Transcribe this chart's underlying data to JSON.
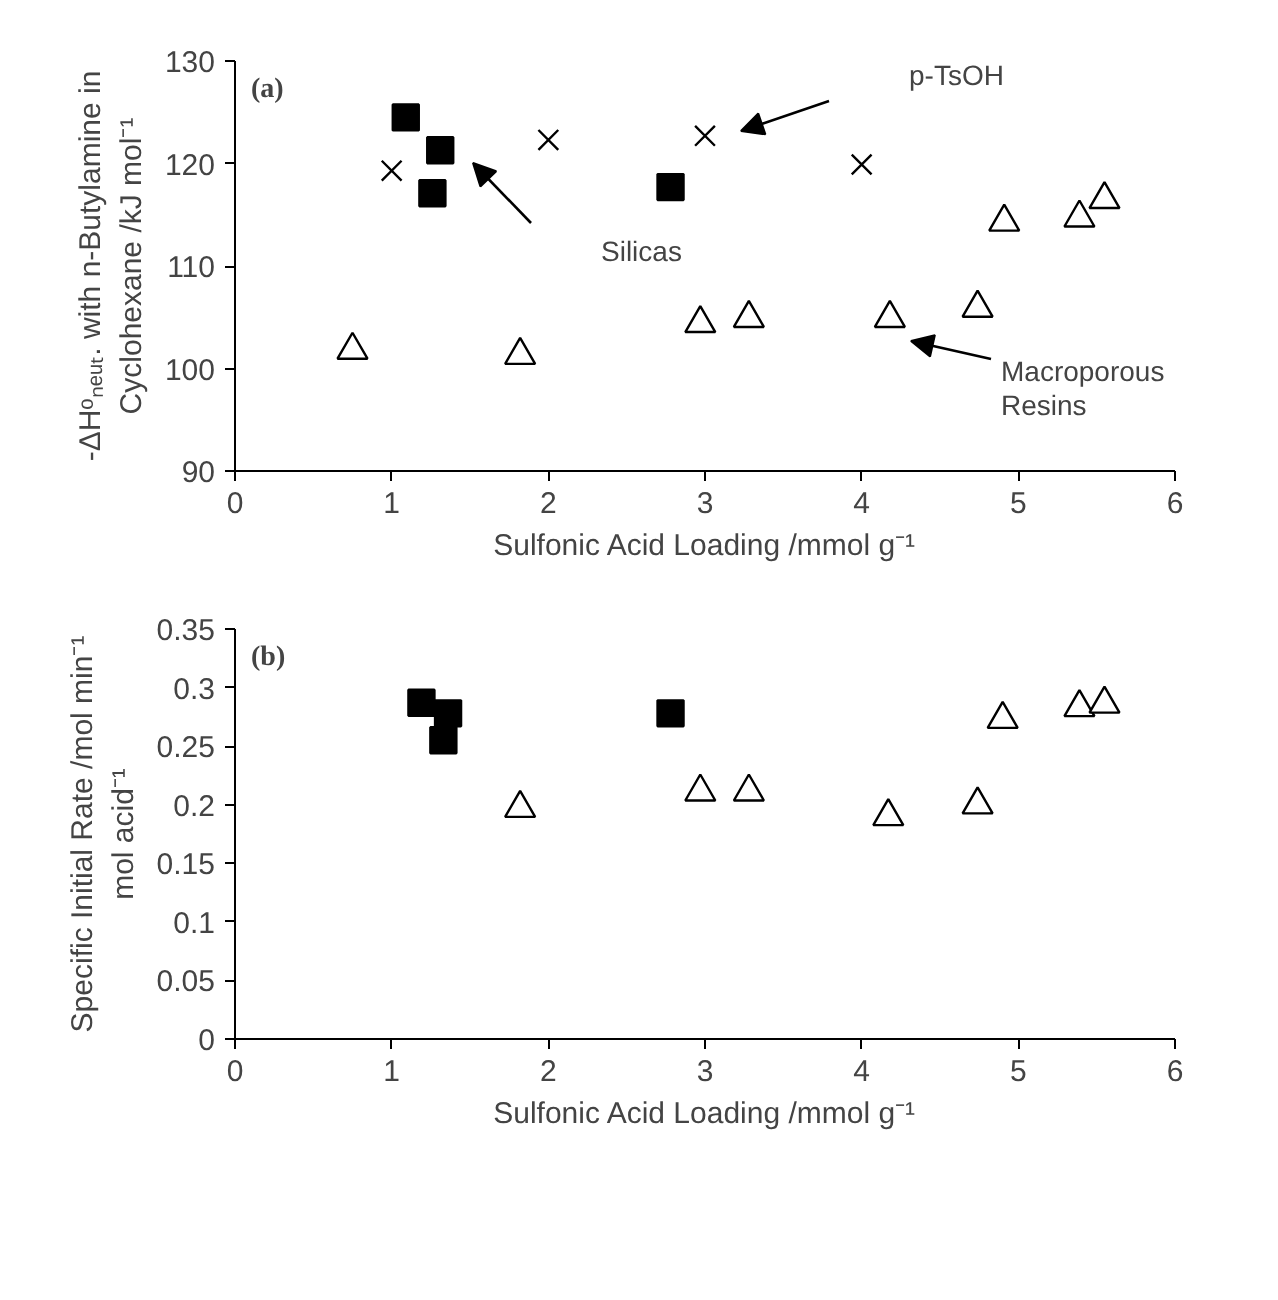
{
  "chart_data": [
    {
      "type": "scatter",
      "xlabel": "Sulfonic Acid Loading /mmol g⁻¹",
      "ylabel": "-ΔHᵒₙₑᵤₜ. with n-Butylamine in\nCyclohexane /kJ mol⁻¹",
      "xlim": [
        0,
        6
      ],
      "xticks": [
        0,
        1,
        2,
        3,
        4,
        5,
        6
      ],
      "ylim": [
        90,
        130
      ],
      "yticks": [
        90,
        100,
        110,
        120,
        130
      ],
      "grid": false,
      "series": [
        {
          "color": "#000000",
          "marker": "square",
          "x": [
            1.09,
            1.31,
            1.26,
            2.78
          ],
          "values": [
            124.5,
            121.3,
            117.1,
            117.7
          ]
        },
        {
          "color": "#000000",
          "marker": "cross",
          "x": [
            1.0,
            2.0,
            3.0,
            4.0
          ],
          "values": [
            119.3,
            122.3,
            122.7,
            119.9
          ]
        },
        {
          "color": "#000000",
          "marker": "triangle",
          "x": [
            0.75,
            1.82,
            2.97,
            3.28,
            4.18,
            4.74,
            4.91,
            5.39,
            5.55
          ],
          "values": [
            101.8,
            101.3,
            104.4,
            104.9,
            104.9,
            105.9,
            114.3,
            114.7,
            116.5
          ]
        }
      ],
      "annotations": [
        "(a)",
        "Silicas",
        "p-TsOH",
        "Macroporous\nResins"
      ]
    },
    {
      "type": "scatter",
      "xlabel": "Sulfonic Acid Loading /mmol g⁻¹",
      "ylabel": "Specific Initial Rate /mol min⁻¹\nmol acid⁻¹",
      "xlim": [
        0,
        6
      ],
      "xticks": [
        0,
        1,
        2,
        3,
        4,
        5,
        6
      ],
      "ylim": [
        0,
        0.35
      ],
      "yticks": [
        0,
        0.05,
        0.1,
        0.15,
        0.2,
        0.25,
        0.3,
        0.35
      ],
      "grid": false,
      "series": [
        {
          "color": "#000000",
          "marker": "square",
          "x": [
            1.19,
            1.36,
            1.33,
            2.78
          ],
          "values": [
            0.287,
            0.278,
            0.255,
            0.278
          ]
        },
        {
          "color": "#000000",
          "marker": "triangle",
          "x": [
            1.82,
            2.97,
            3.28,
            4.17,
            4.74,
            4.9,
            5.39,
            5.55
          ],
          "values": [
            0.197,
            0.211,
            0.211,
            0.19,
            0.2,
            0.273,
            0.283,
            0.286
          ]
        }
      ],
      "annotations": [
        "(b)"
      ]
    }
  ]
}
